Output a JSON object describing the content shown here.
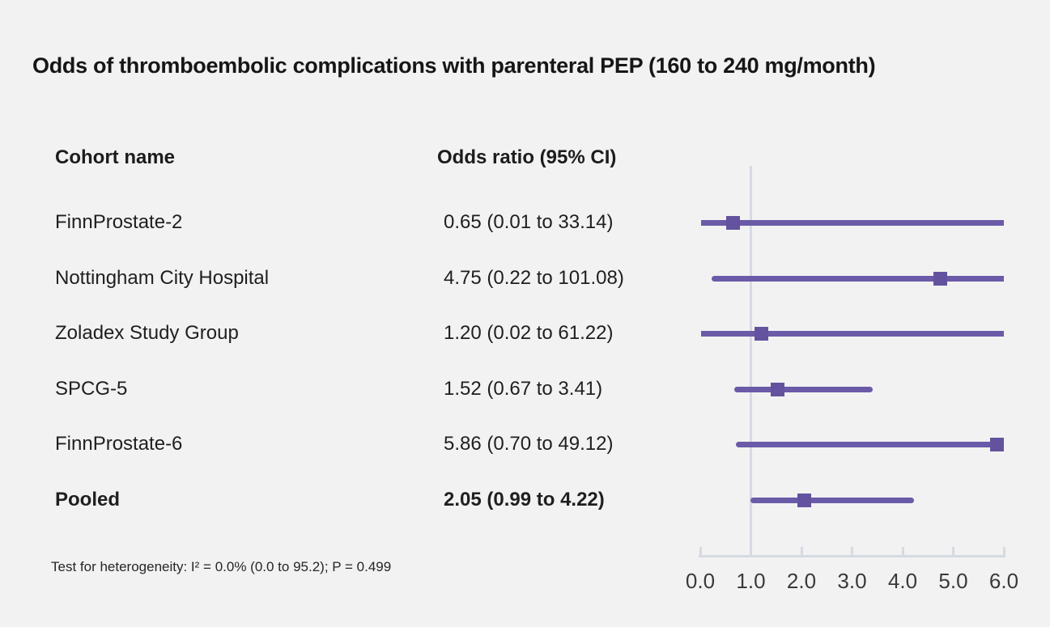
{
  "chart_data": {
    "type": "forest",
    "title": "Odds of thromboembolic complications with parenteral PEP (160 to 240 mg/month)",
    "columns": {
      "cohort": "Cohort name",
      "odds": "Odds ratio (95% CI)"
    },
    "rows": [
      {
        "name": "FinnProstate-2",
        "label": "0.65 (0.01 to 33.14)",
        "or": 0.65,
        "ci_low": 0.01,
        "ci_high": 33.14,
        "bold": false
      },
      {
        "name": "Nottingham City Hospital",
        "label": "4.75 (0.22 to 101.08)",
        "or": 4.75,
        "ci_low": 0.22,
        "ci_high": 101.08,
        "bold": false
      },
      {
        "name": "Zoladex Study Group",
        "label": "1.20 (0.02 to 61.22)",
        "or": 1.2,
        "ci_low": 0.02,
        "ci_high": 61.22,
        "bold": false
      },
      {
        "name": "SPCG-5",
        "label": "1.52 (0.67 to 3.41)",
        "or": 1.52,
        "ci_low": 0.67,
        "ci_high": 3.41,
        "bold": false
      },
      {
        "name": "FinnProstate-6",
        "label": "5.86 (0.70 to 49.12)",
        "or": 5.86,
        "ci_low": 0.7,
        "ci_high": 49.12,
        "bold": false
      },
      {
        "name": "Pooled",
        "label": "2.05 (0.99 to 4.22)",
        "or": 2.05,
        "ci_low": 0.99,
        "ci_high": 4.22,
        "bold": true
      }
    ],
    "x_axis": {
      "min": 0,
      "max": 6,
      "tick_values": [
        0,
        1,
        2,
        3,
        4,
        5,
        6
      ],
      "tick_labels": [
        "0.0",
        "1.0",
        "2.0",
        "3.0",
        "4.0",
        "5.0",
        "6.0"
      ],
      "reference_line": 1.0,
      "grid": false
    },
    "legend": "none",
    "heterogeneity": "Test for heterogeneity: I² = 0.0% (0.0 to 95.2); P = 0.499",
    "colors": {
      "ci_line": "#6b5aa8",
      "marker": "#63539f",
      "axis": "#d6dae2",
      "background": "#f2f2f2",
      "text": "#1c1c1c"
    }
  }
}
